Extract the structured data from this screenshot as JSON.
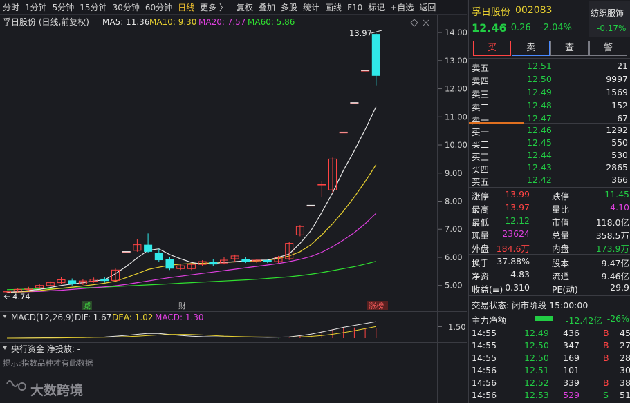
{
  "toolbar": {
    "items": [
      "分时",
      "1分钟",
      "5分钟",
      "15分钟",
      "30分钟",
      "60分钟",
      "日线",
      "更多 〉",
      "复权",
      "叠加",
      "多股",
      "统计",
      "画线",
      "F10",
      "标记",
      "+自选",
      "返回"
    ],
    "active_index": 6
  },
  "chart": {
    "stock_label": "孚日股份 (日线,前复权)",
    "ma5": "MA5: 11.36",
    "ma10": "MA10: 9.30",
    "ma20": "MA20: 7.57",
    "ma60": "MA60: 5.86",
    "high_marker": "13.97",
    "low_marker": "4.74",
    "price_ticks": [
      "14.00",
      "13.00",
      "12.00",
      "11.00",
      "10.00",
      "9.00",
      "8.00",
      "7.00",
      "6.00",
      "5.00"
    ],
    "event_labels": [
      "减",
      "财",
      "涨榜"
    ],
    "macd_label": "MACD(12,26,9)",
    "dif": "DIF: 1.67",
    "dea": "DEA: 1.02",
    "macd": "MACD: 1.30",
    "macd_tick": "1.50",
    "fund_label": "央行资金  净投放: -",
    "hint": "提示:指数品种才有此数据",
    "watermark": "大数跨境"
  },
  "chart_data": {
    "type": "candlestick",
    "y_range": [
      4.6,
      14.1
    ],
    "candles": [
      {
        "o": 4.74,
        "c": 4.78,
        "h": 4.82,
        "l": 4.74
      },
      {
        "o": 4.8,
        "c": 4.86,
        "h": 4.9,
        "l": 4.76
      },
      {
        "o": 4.86,
        "c": 4.9,
        "h": 4.95,
        "l": 4.82
      },
      {
        "o": 4.92,
        "c": 5.0,
        "h": 5.05,
        "l": 4.88
      },
      {
        "o": 5.0,
        "c": 5.1,
        "h": 5.15,
        "l": 4.98
      },
      {
        "o": 5.1,
        "c": 5.2,
        "h": 5.3,
        "l": 5.05
      },
      {
        "o": 5.18,
        "c": 5.05,
        "h": 5.25,
        "l": 5.0
      },
      {
        "o": 5.06,
        "c": 5.16,
        "h": 5.22,
        "l": 5.02
      },
      {
        "o": 5.15,
        "c": 5.22,
        "h": 5.28,
        "l": 5.1
      },
      {
        "o": 5.24,
        "c": 5.16,
        "h": 5.3,
        "l": 5.1
      },
      {
        "o": 5.18,
        "c": 5.55,
        "h": 5.6,
        "l": 5.15
      },
      {
        "o": 6.2,
        "c": 6.2,
        "h": 6.2,
        "l": 6.2
      },
      {
        "o": 6.25,
        "c": 6.45,
        "h": 6.65,
        "l": 6.2
      },
      {
        "o": 6.45,
        "c": 6.2,
        "h": 6.85,
        "l": 6.15
      },
      {
        "o": 6.15,
        "c": 5.9,
        "h": 6.3,
        "l": 5.85
      },
      {
        "o": 5.95,
        "c": 5.6,
        "h": 6.0,
        "l": 5.55
      },
      {
        "o": 5.6,
        "c": 5.7,
        "h": 5.75,
        "l": 5.55
      },
      {
        "o": 5.6,
        "c": 5.75,
        "h": 5.8,
        "l": 5.55
      },
      {
        "o": 5.75,
        "c": 5.85,
        "h": 5.9,
        "l": 5.7
      },
      {
        "o": 5.85,
        "c": 5.75,
        "h": 5.95,
        "l": 5.7
      },
      {
        "o": 5.8,
        "c": 5.9,
        "h": 6.0,
        "l": 5.75
      },
      {
        "o": 5.95,
        "c": 6.05,
        "h": 6.1,
        "l": 5.85
      },
      {
        "o": 5.95,
        "c": 5.85,
        "h": 6.0,
        "l": 5.8
      },
      {
        "o": 5.85,
        "c": 5.9,
        "h": 5.95,
        "l": 5.8
      },
      {
        "o": 5.9,
        "c": 5.85,
        "h": 5.95,
        "l": 5.8
      },
      {
        "o": 5.85,
        "c": 6.0,
        "h": 6.05,
        "l": 5.8
      },
      {
        "o": 5.95,
        "c": 6.5,
        "h": 6.55,
        "l": 5.9
      },
      {
        "o": 6.8,
        "c": 7.1,
        "h": 7.15,
        "l": 6.75
      },
      {
        "o": 7.85,
        "c": 7.85,
        "h": 7.85,
        "l": 7.85
      },
      {
        "o": 8.6,
        "c": 8.6,
        "h": 8.7,
        "l": 8.15
      },
      {
        "o": 8.4,
        "c": 9.5,
        "h": 9.55,
        "l": 8.3
      },
      {
        "o": 10.45,
        "c": 10.45,
        "h": 10.45,
        "l": 10.45
      },
      {
        "o": 11.5,
        "c": 11.5,
        "h": 11.5,
        "l": 11.5
      },
      {
        "o": 12.65,
        "c": 12.65,
        "h": 12.65,
        "l": 12.65
      },
      {
        "o": 13.95,
        "c": 12.46,
        "h": 13.97,
        "l": 12.12
      }
    ],
    "ma5": [
      4.76,
      4.78,
      4.82,
      4.86,
      4.93,
      5.0,
      5.05,
      5.1,
      5.16,
      5.2,
      5.42,
      5.68,
      5.98,
      6.25,
      6.3,
      6.1,
      5.95,
      5.82,
      5.76,
      5.78,
      5.82,
      5.85,
      5.88,
      5.9,
      5.9,
      6.0,
      6.12,
      6.5,
      6.95,
      7.6,
      8.3,
      9.1,
      9.8,
      10.55,
      11.36
    ],
    "ma10": [
      4.76,
      4.77,
      4.79,
      4.82,
      4.86,
      4.9,
      4.94,
      4.98,
      5.03,
      5.08,
      5.15,
      5.28,
      5.42,
      5.57,
      5.65,
      5.72,
      5.76,
      5.78,
      5.79,
      5.8,
      5.82,
      5.84,
      5.86,
      5.88,
      5.9,
      5.96,
      6.05,
      6.2,
      6.45,
      6.8,
      7.2,
      7.65,
      8.15,
      8.7,
      9.3
    ],
    "ma20": [
      4.76,
      4.77,
      4.78,
      4.79,
      4.81,
      4.83,
      4.86,
      4.89,
      4.92,
      4.95,
      4.99,
      5.04,
      5.1,
      5.16,
      5.22,
      5.28,
      5.33,
      5.38,
      5.43,
      5.48,
      5.53,
      5.58,
      5.63,
      5.68,
      5.73,
      5.78,
      5.85,
      5.93,
      6.03,
      6.18,
      6.38,
      6.62,
      6.88,
      7.2,
      7.57
    ],
    "ma60": [
      4.85,
      4.86,
      4.87,
      4.88,
      4.89,
      4.9,
      4.91,
      4.92,
      4.93,
      4.94,
      4.96,
      4.98,
      5.0,
      5.02,
      5.04,
      5.06,
      5.08,
      5.1,
      5.12,
      5.14,
      5.16,
      5.18,
      5.2,
      5.22,
      5.25,
      5.28,
      5.31,
      5.35,
      5.4,
      5.46,
      5.53,
      5.6,
      5.67,
      5.76,
      5.86
    ]
  },
  "quote": {
    "name": "孚日股份",
    "code": "002083",
    "sector": "纺织服饰",
    "sector_change": "-0.17%",
    "price": "12.46",
    "change": "-0.26",
    "change_pct": "-2.04%",
    "buttons": [
      "买",
      "卖",
      "查",
      "警"
    ],
    "asks": [
      {
        "label": "卖五",
        "price": "12.51",
        "vol": "21"
      },
      {
        "label": "卖四",
        "price": "12.50",
        "vol": "9997"
      },
      {
        "label": "卖三",
        "price": "12.49",
        "vol": "1569"
      },
      {
        "label": "卖二",
        "price": "12.48",
        "vol": "152"
      },
      {
        "label": "卖一",
        "price": "12.47",
        "vol": "67"
      }
    ],
    "bids": [
      {
        "label": "买一",
        "price": "12.46",
        "vol": "1292"
      },
      {
        "label": "买二",
        "price": "12.45",
        "vol": "550"
      },
      {
        "label": "买三",
        "price": "12.44",
        "vol": "530"
      },
      {
        "label": "买四",
        "price": "12.43",
        "vol": "2865"
      },
      {
        "label": "买五",
        "price": "12.42",
        "vol": "366"
      }
    ],
    "stats": [
      {
        "l1": "涨停",
        "v1": "13.99",
        "c1": "red",
        "l2": "跌停",
        "v2": "11.45",
        "c2": "green"
      },
      {
        "l1": "最高",
        "v1": "13.97",
        "c1": "red",
        "l2": "量比",
        "v2": "4.10",
        "c2": "magenta"
      },
      {
        "l1": "最低",
        "v1": "12.12",
        "c1": "green",
        "l2": "市值",
        "v2": "118.0亿",
        "c2": "white"
      },
      {
        "l1": "现量",
        "v1": "23624",
        "c1": "magenta",
        "l2": "总量",
        "v2": "358.5万",
        "c2": "white"
      },
      {
        "l1": "外盘",
        "v1": "184.6万",
        "c1": "red",
        "l2": "内盘",
        "v2": "173.9万",
        "c2": "green"
      }
    ],
    "stats2": [
      {
        "l1": "换手",
        "v1": "37.88%",
        "l2": "股本",
        "v2": "9.47亿"
      },
      {
        "l1": "净资",
        "v1": "4.83",
        "l2": "流通",
        "v2": "9.46亿"
      },
      {
        "l1": "收益(≡)",
        "v1": "0.310",
        "l2": "PE(动)",
        "v2": "29.9"
      }
    ],
    "trade_status": "交易状态: 闭市阶段 15:00:00",
    "main_flow_label": "主力净额",
    "main_flow_value": "-12.42亿",
    "main_flow_pct": "-26%",
    "ticks": [
      {
        "t": "14:55",
        "p": "12.49",
        "v": "436",
        "s": "B",
        "n": "45"
      },
      {
        "t": "14:55",
        "p": "12.50",
        "v": "347",
        "s": "B",
        "n": "27"
      },
      {
        "t": "14:55",
        "p": "12.50",
        "v": "169",
        "s": "B",
        "n": "28"
      },
      {
        "t": "14:56",
        "p": "12.51",
        "v": "101",
        "s": "",
        "n": "30"
      },
      {
        "t": "14:56",
        "p": "12.52",
        "v": "339",
        "s": "B",
        "n": "38"
      },
      {
        "t": "14:56",
        "p": "12.53",
        "v": "529",
        "s": "S",
        "n": "51"
      }
    ]
  }
}
